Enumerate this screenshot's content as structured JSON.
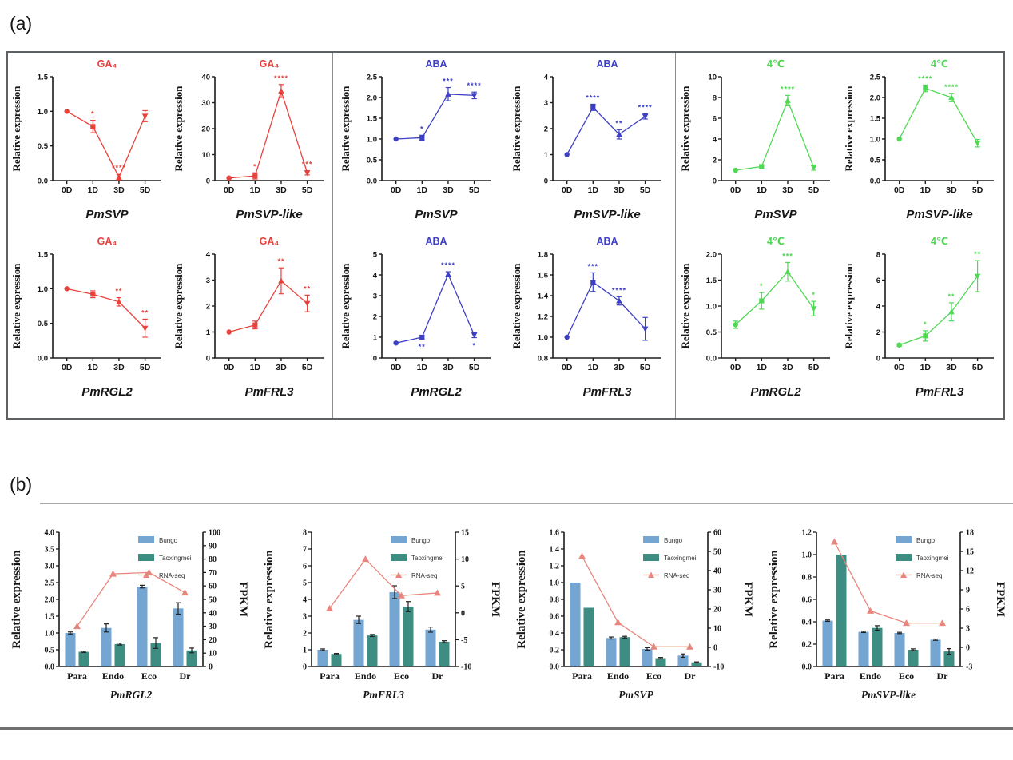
{
  "figure_labels": {
    "a": "(a)",
    "b": "(b)"
  },
  "chart_data": {
    "panel_a": {
      "type": "line",
      "ylabel": "Relative expression",
      "x_categories": [
        "0D",
        "1D",
        "3D",
        "5D"
      ],
      "markers": [
        "circle",
        "square",
        "triangle-up",
        "triangle-down"
      ],
      "groups": [
        {
          "label": "GA₄",
          "color": "#e8413c",
          "charts": [
            {
              "gene": "PmSVP",
              "ymin": 0,
              "ymax": 1.5,
              "yticks": [
                "0.0",
                "0.5",
                "1.0",
                "1.5"
              ],
              "values": [
                1.0,
                0.78,
                0.05,
                0.93
              ],
              "errors": [
                0,
                0.09,
                0.04,
                0.08
              ],
              "sig": [
                "",
                "*",
                "****",
                ""
              ],
              "sig_below": [
                false,
                false,
                false,
                false
              ]
            },
            {
              "gene": "PmSVP-like",
              "ymin": 0,
              "ymax": 40,
              "yticks": [
                "0",
                "10",
                "20",
                "30",
                "40"
              ],
              "values": [
                1,
                1.8,
                34.5,
                3
              ],
              "errors": [
                0.3,
                1.2,
                2.5,
                0.8
              ],
              "sig": [
                "",
                "*",
                "****",
                "***"
              ],
              "sig_below": [
                false,
                false,
                false,
                false
              ]
            },
            {
              "gene": "PmRGL2",
              "ymin": 0,
              "ymax": 1.5,
              "yticks": [
                "0.0",
                "0.5",
                "1.0",
                "1.5"
              ],
              "values": [
                1.0,
                0.92,
                0.81,
                0.43
              ],
              "errors": [
                0,
                0.05,
                0.06,
                0.13
              ],
              "sig": [
                "",
                "",
                "**",
                "**"
              ],
              "sig_below": [
                false,
                false,
                false,
                false
              ]
            },
            {
              "gene": "PmFRL3",
              "ymin": 0,
              "ymax": 4,
              "yticks": [
                "0",
                "1",
                "2",
                "3",
                "4"
              ],
              "values": [
                1.0,
                1.27,
                2.97,
                2.1
              ],
              "errors": [
                0,
                0.15,
                0.5,
                0.32
              ],
              "sig": [
                "",
                "",
                "**",
                "**"
              ],
              "sig_below": [
                false,
                false,
                false,
                false
              ]
            }
          ]
        },
        {
          "label": "ABA",
          "color": "#3d3fc4",
          "charts": [
            {
              "gene": "PmSVP",
              "ymin": 0,
              "ymax": 2.5,
              "yticks": [
                "0.0",
                "0.5",
                "1.0",
                "1.5",
                "2.0",
                "2.5"
              ],
              "values": [
                1.0,
                1.03,
                2.08,
                2.05
              ],
              "errors": [
                0,
                0.06,
                0.16,
                0.08
              ],
              "sig": [
                "",
                "*",
                "***",
                "****"
              ],
              "sig_below": [
                false,
                false,
                false,
                false
              ]
            },
            {
              "gene": "PmSVP-like",
              "ymin": 0,
              "ymax": 4,
              "yticks": [
                "0",
                "1",
                "2",
                "3",
                "4"
              ],
              "values": [
                1.0,
                2.82,
                1.78,
                2.47
              ],
              "errors": [
                0,
                0.12,
                0.18,
                0.1
              ],
              "sig": [
                "",
                "****",
                "**",
                "****"
              ],
              "sig_below": [
                false,
                false,
                false,
                false
              ]
            },
            {
              "gene": "PmRGL2",
              "ymin": 0,
              "ymax": 5,
              "yticks": [
                "0",
                "1",
                "2",
                "3",
                "4",
                "5"
              ],
              "values": [
                0.72,
                1.0,
                4.03,
                1.1
              ],
              "errors": [
                0.05,
                0.08,
                0.12,
                0.12
              ],
              "sig": [
                "",
                "**",
                "****",
                "*"
              ],
              "sig_below": [
                false,
                true,
                false,
                true
              ]
            },
            {
              "gene": "PmFRL3",
              "ymin": 0.8,
              "ymax": 1.8,
              "yticks": [
                "0.8",
                "1.0",
                "1.2",
                "1.4",
                "1.6",
                "1.8"
              ],
              "values": [
                1.0,
                1.53,
                1.35,
                1.08
              ],
              "errors": [
                0,
                0.09,
                0.04,
                0.11
              ],
              "sig": [
                "",
                "***",
                "****",
                ""
              ],
              "sig_below": [
                false,
                false,
                false,
                false
              ]
            }
          ]
        },
        {
          "label": "4℃",
          "color": "#4fd853",
          "charts": [
            {
              "gene": "PmSVP",
              "ymin": 0,
              "ymax": 10,
              "yticks": [
                "0",
                "2",
                "4",
                "6",
                "8",
                "10"
              ],
              "values": [
                1.0,
                1.35,
                7.7,
                1.25
              ],
              "errors": [
                0.05,
                0.15,
                0.5,
                0.25
              ],
              "sig": [
                "",
                "",
                "****",
                ""
              ],
              "sig_below": [
                false,
                false,
                false,
                false
              ]
            },
            {
              "gene": "PmSVP-like",
              "ymin": 0,
              "ymax": 2.5,
              "yticks": [
                "0.0",
                "0.5",
                "1.0",
                "1.5",
                "2.0",
                "2.5"
              ],
              "values": [
                1.0,
                2.22,
                2.0,
                0.9
              ],
              "errors": [
                0,
                0.08,
                0.1,
                0.09
              ],
              "sig": [
                "",
                "****",
                "****",
                ""
              ],
              "sig_below": [
                false,
                false,
                false,
                false
              ]
            },
            {
              "gene": "PmRGL2",
              "ymin": 0,
              "ymax": 2.0,
              "yticks": [
                "0.0",
                "0.5",
                "1.0",
                "1.5",
                "2.0"
              ],
              "values": [
                0.64,
                1.1,
                1.66,
                0.95
              ],
              "errors": [
                0.07,
                0.16,
                0.18,
                0.14
              ],
              "sig": [
                "",
                "*",
                "***",
                "*"
              ],
              "sig_below": [
                false,
                false,
                false,
                false
              ]
            },
            {
              "gene": "PmFRL3",
              "ymin": 0,
              "ymax": 8,
              "yticks": [
                "0",
                "2",
                "4",
                "6",
                "8"
              ],
              "values": [
                1.0,
                1.7,
                3.55,
                6.3
              ],
              "errors": [
                0.1,
                0.4,
                0.7,
                1.2
              ],
              "sig": [
                "",
                "*",
                "**",
                "**"
              ],
              "sig_below": [
                false,
                false,
                false,
                false
              ]
            }
          ]
        }
      ]
    },
    "panel_b": {
      "type": "bar+line",
      "legend": [
        "Bungo",
        "Taoxingmei",
        "RNA-seq"
      ],
      "colors": {
        "bungo": "#75a5d1",
        "taoxingmei": "#3d8d82",
        "rnaseq": "#e8867d"
      },
      "categories": [
        "Para",
        "Endo",
        "Eco",
        "Dr"
      ],
      "left_label": "Relative expression",
      "right_label": "FPKM",
      "charts": [
        {
          "gene": "PmRGL2",
          "left_min": 0,
          "left_max": 4.0,
          "left_ticks": [
            "0.0",
            "0.5",
            "1.0",
            "1.5",
            "2.0",
            "2.5",
            "3.0",
            "3.5",
            "4.0"
          ],
          "right_min": 0,
          "right_max": 100,
          "right_ticks": [
            "0",
            "10",
            "20",
            "30",
            "40",
            "50",
            "60",
            "70",
            "80",
            "90",
            "100"
          ],
          "bungo": {
            "values": [
              1.0,
              1.15,
              2.38,
              1.73
            ],
            "errors": [
              0.03,
              0.12,
              0.04,
              0.17
            ]
          },
          "taoxingmei": {
            "values": [
              0.44,
              0.67,
              0.7,
              0.48
            ],
            "errors": [
              0.02,
              0.03,
              0.16,
              0.07
            ]
          },
          "rnaseq": {
            "values": [
              30,
              69,
              70,
              55
            ]
          }
        },
        {
          "gene": "PmFRL3",
          "left_min": 0,
          "left_max": 8,
          "left_ticks": [
            "0",
            "1",
            "2",
            "3",
            "4",
            "5",
            "6",
            "7",
            "8"
          ],
          "right_min": -10,
          "right_max": 15,
          "right_ticks": [
            "-10",
            "-5",
            "0",
            "5",
            "10",
            "15"
          ],
          "bungo": {
            "values": [
              1.0,
              2.78,
              4.43,
              2.2
            ],
            "errors": [
              0.05,
              0.22,
              0.38,
              0.15
            ]
          },
          "taoxingmei": {
            "values": [
              0.75,
              1.85,
              3.57,
              1.48
            ],
            "errors": [
              0.03,
              0.06,
              0.3,
              0.06
            ]
          },
          "rnaseq": {
            "values": [
              0.8,
              10,
              3.2,
              3.7
            ]
          }
        },
        {
          "gene": "PmSVP",
          "left_min": 0,
          "left_max": 1.6,
          "left_ticks": [
            "0.0",
            "0.2",
            "0.4",
            "0.6",
            "0.8",
            "1.0",
            "1.2",
            "1.4",
            "1.6"
          ],
          "right_min": -10,
          "right_max": 60,
          "right_ticks": [
            "-10",
            "0",
            "10",
            "20",
            "30",
            "40",
            "50",
            "60"
          ],
          "bungo": {
            "values": [
              1.0,
              0.34,
              0.21,
              0.13
            ],
            "errors": [
              0,
              0.012,
              0.015,
              0.02
            ]
          },
          "taoxingmei": {
            "values": [
              0.7,
              0.35,
              0.1,
              0.05
            ],
            "errors": [
              0,
              0.01,
              0.008,
              0.006
            ]
          },
          "rnaseq": {
            "values": [
              47.5,
              13,
              0.3,
              0.3
            ]
          }
        },
        {
          "gene": "PmSVP-like",
          "left_min": 0,
          "left_max": 1.2,
          "left_ticks": [
            "0.0",
            "0.2",
            "0.4",
            "0.6",
            "0.8",
            "1.0",
            "1.2"
          ],
          "right_min": -3,
          "right_max": 18,
          "right_ticks": [
            "-3",
            "0",
            "3",
            "6",
            "9",
            "12",
            "15",
            "18"
          ],
          "bungo": {
            "values": [
              0.41,
              0.31,
              0.3,
              0.24
            ],
            "errors": [
              0.006,
              0.006,
              0.006,
              0.006
            ]
          },
          "taoxingmei": {
            "values": [
              1.0,
              0.345,
              0.15,
              0.135
            ],
            "errors": [
              0,
              0.02,
              0.008,
              0.025
            ]
          },
          "rnaseq": {
            "values": [
              16.5,
              5.7,
              3.8,
              3.8
            ]
          }
        }
      ]
    }
  }
}
